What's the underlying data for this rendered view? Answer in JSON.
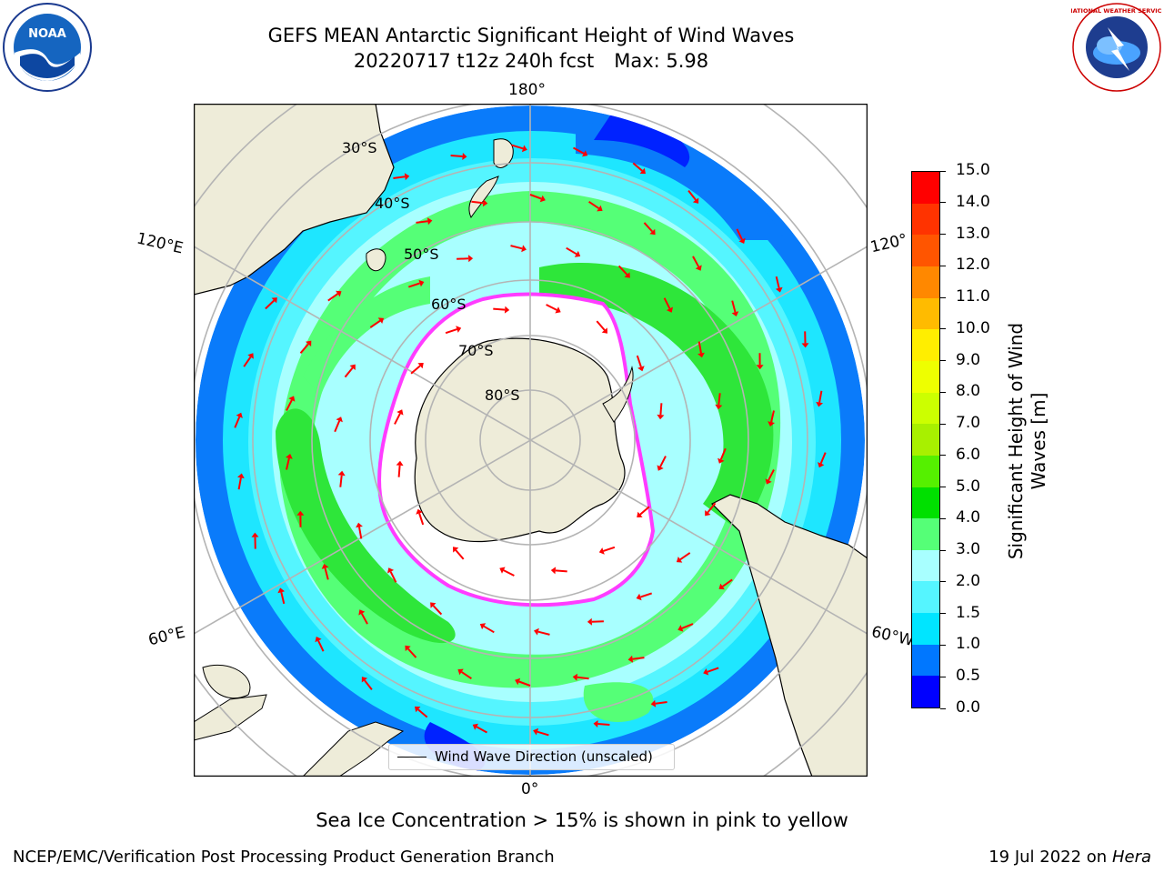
{
  "title": {
    "line1": "GEFS MEAN Antarctic Significant Height of Wind Waves",
    "run": "20220717 t12z 240h fcst",
    "max": "Max: 5.98"
  },
  "logos": {
    "left": "NOAA",
    "right": "NATIONAL WEATHER SERVICE"
  },
  "map": {
    "projection": "south-polar-stereographic",
    "lon_labels": {
      "top": "180°",
      "bottom": "0°",
      "upper_left": "120°E",
      "upper_right": "120°",
      "lower_left": "60°E",
      "lower_right": "60°W"
    },
    "lat_labels": [
      "30°S",
      "40°S",
      "50°S",
      "60°S",
      "70°S",
      "80°S"
    ],
    "colors": {
      "land": "#eeecd9",
      "ice_shelf": "#ffffff",
      "grid": "#b4b4b4",
      "arrow": "#ff0000",
      "sea_ice_edge": "#ff3cff"
    }
  },
  "legend": {
    "label": "Wind Wave Direction (unscaled)"
  },
  "colorbar": {
    "title_line1": "Significant Height of Wind",
    "title_line2": "Waves [m]",
    "ticks": [
      "0.0",
      "0.5",
      "1.0",
      "1.5",
      "2.0",
      "3.0",
      "4.0",
      "5.0",
      "6.0",
      "7.0",
      "8.0",
      "9.0",
      "10.0",
      "11.0",
      "12.0",
      "13.0",
      "14.0",
      "15.0"
    ],
    "colors": [
      "#0000ff",
      "#0077ff",
      "#00e5ff",
      "#55f5ff",
      "#a8ffff",
      "#55ff77",
      "#00e000",
      "#55f000",
      "#a8f000",
      "#ccff00",
      "#eeff00",
      "#ffee00",
      "#ffbb00",
      "#ff8800",
      "#ff5500",
      "#ff3300",
      "#ff0000"
    ]
  },
  "footnote": "Sea Ice Concentration > 15% is shown in pink to yellow",
  "footer": {
    "left": "NCEP/EMC/Verification Post Processing Product Generation Branch",
    "date": "19 Jul 2022 on ",
    "machine": "Hera"
  }
}
